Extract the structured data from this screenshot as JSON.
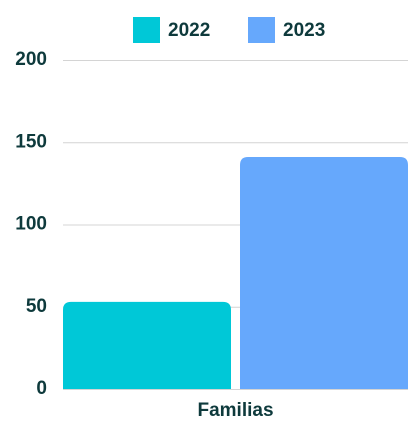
{
  "chart_data": {
    "type": "bar",
    "categories": [
      "Familias"
    ],
    "series": [
      {
        "name": "2022",
        "color": "#00c8d7",
        "values": [
          53
        ]
      },
      {
        "name": "2023",
        "color": "#66a8fc",
        "values": [
          141
        ]
      }
    ],
    "ylim": [
      0,
      200
    ],
    "yticks": [
      0,
      50,
      100,
      150,
      200
    ],
    "grid": true,
    "legend": "top"
  }
}
